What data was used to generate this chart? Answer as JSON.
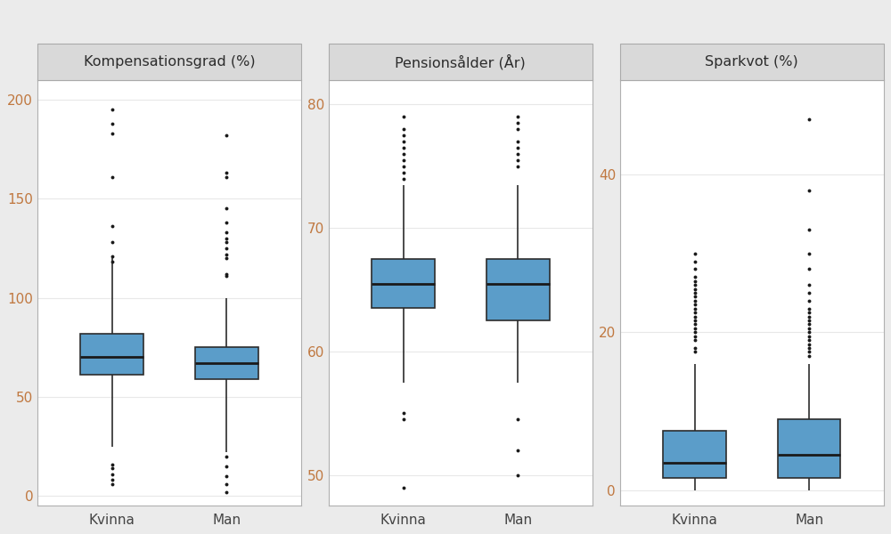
{
  "panels": [
    {
      "title": "Kompensationsgrad (%)",
      "categories": [
        "Kvinna",
        "Man"
      ],
      "boxes": [
        {
          "q1": 61,
          "median": 70,
          "q3": 82,
          "whisker_low": 25,
          "whisker_high": 120,
          "outliers": [
            195,
            188,
            183,
            161,
            136,
            128,
            121,
            118,
            16,
            14,
            11,
            8,
            6
          ]
        },
        {
          "q1": 59,
          "median": 67,
          "q3": 75,
          "whisker_low": 22,
          "whisker_high": 100,
          "outliers": [
            182,
            163,
            161,
            145,
            138,
            133,
            130,
            128,
            125,
            122,
            120,
            112,
            111,
            20,
            15,
            10,
            6,
            2
          ]
        }
      ],
      "ylim": [
        -5,
        210
      ],
      "yticks": [
        0,
        50,
        100,
        150,
        200
      ]
    },
    {
      "title": "Pensionsålder (År)",
      "categories": [
        "Kvinna",
        "Man"
      ],
      "boxes": [
        {
          "q1": 63.5,
          "median": 65.5,
          "q3": 67.5,
          "whisker_low": 57.5,
          "whisker_high": 73.5,
          "outliers": [
            79,
            78,
            77.5,
            77,
            76.5,
            76,
            75.5,
            75,
            74.5,
            74,
            55,
            54.5,
            49
          ]
        },
        {
          "q1": 62.5,
          "median": 65.5,
          "q3": 67.5,
          "whisker_low": 57.5,
          "whisker_high": 73.5,
          "outliers": [
            79,
            78.5,
            78,
            77,
            76.5,
            76,
            75.5,
            75,
            54.5,
            52,
            50
          ]
        }
      ],
      "ylim": [
        47.5,
        82
      ],
      "yticks": [
        50,
        60,
        70,
        80
      ]
    },
    {
      "title": "Sparkvot (%)",
      "categories": [
        "Kvinna",
        "Man"
      ],
      "boxes": [
        {
          "q1": 1.5,
          "median": 3.5,
          "q3": 7.5,
          "whisker_low": 0,
          "whisker_high": 16,
          "outliers": [
            30,
            29,
            28,
            27,
            26.5,
            26,
            25.5,
            25,
            24.5,
            24,
            23.5,
            23,
            22.5,
            22,
            21.5,
            21,
            20.5,
            20,
            19.5,
            19,
            18,
            17.5
          ]
        },
        {
          "q1": 1.5,
          "median": 4.5,
          "q3": 9.0,
          "whisker_low": 0,
          "whisker_high": 16,
          "outliers": [
            47,
            38,
            33,
            30,
            28,
            26,
            25,
            24,
            23,
            22.5,
            22,
            21.5,
            21,
            20.5,
            20,
            19.5,
            19,
            18.5,
            18,
            17.5,
            17
          ]
        }
      ],
      "ylim": [
        -2,
        52
      ],
      "yticks": [
        0,
        20,
        40
      ]
    }
  ],
  "box_color": "#5B9DC9",
  "box_edge_color": "#2c2c2c",
  "median_color": "#1a1a1a",
  "whisker_color": "#2c2c2c",
  "outlier_color": "#1a1a1a",
  "bg_plot": "#ffffff",
  "bg_outer": "#ebebeb",
  "strip_bg": "#d9d9d9",
  "strip_border": "#aaaaaa",
  "grid_color": "#e8e8e8",
  "tick_label_color": "#C07840",
  "title_fontsize": 11.5,
  "tick_fontsize": 11,
  "box_width": 0.55
}
